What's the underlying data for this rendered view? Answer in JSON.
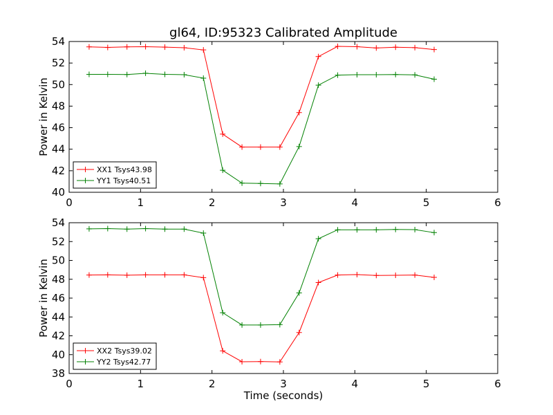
{
  "figure_title": "gl64, ID:95323 Calibrated Amplitude",
  "chart_data": [
    {
      "type": "line",
      "ylabel": "Power in Kelvin",
      "xlabel": "",
      "xlim": [
        0,
        6
      ],
      "ylim": [
        40,
        54
      ],
      "xticks": [
        0,
        1,
        2,
        3,
        4,
        5,
        6
      ],
      "yticks": [
        40,
        42,
        44,
        46,
        48,
        50,
        52,
        54
      ],
      "grid": false,
      "legend_position": "lower-left",
      "x": [
        0.28,
        0.54,
        0.81,
        1.07,
        1.34,
        1.61,
        1.88,
        2.15,
        2.42,
        2.68,
        2.95,
        3.22,
        3.49,
        3.76,
        4.03,
        4.3,
        4.57,
        4.84,
        5.11
      ],
      "series": [
        {
          "name": "XX1 Tsys43.98",
          "color": "#ff0000",
          "values": [
            53.5,
            53.45,
            53.5,
            53.52,
            53.48,
            53.42,
            53.22,
            45.4,
            44.2,
            44.2,
            44.2,
            47.4,
            52.6,
            53.55,
            53.52,
            53.4,
            53.47,
            53.43,
            53.25
          ]
        },
        {
          "name": "YY1 Tsys40.51",
          "color": "#008000",
          "values": [
            50.95,
            50.95,
            50.93,
            51.05,
            50.95,
            50.92,
            50.6,
            42.05,
            40.85,
            40.82,
            40.78,
            44.25,
            49.95,
            50.88,
            50.92,
            50.92,
            50.93,
            50.9,
            50.5
          ]
        }
      ]
    },
    {
      "type": "line",
      "ylabel": "Power in Kelvin",
      "xlabel": "Time (seconds)",
      "xlim": [
        0,
        6
      ],
      "ylim": [
        38,
        54
      ],
      "xticks": [
        0,
        1,
        2,
        3,
        4,
        5,
        6
      ],
      "yticks": [
        38,
        40,
        42,
        44,
        46,
        48,
        50,
        52,
        54
      ],
      "grid": false,
      "legend_position": "lower-left",
      "x": [
        0.28,
        0.54,
        0.81,
        1.07,
        1.34,
        1.61,
        1.88,
        2.15,
        2.42,
        2.68,
        2.95,
        3.22,
        3.49,
        3.76,
        4.03,
        4.3,
        4.57,
        4.84,
        5.11
      ],
      "series": [
        {
          "name": "XX2 Tsys39.02",
          "color": "#ff0000",
          "values": [
            48.45,
            48.47,
            48.43,
            48.47,
            48.47,
            48.47,
            48.17,
            40.4,
            39.25,
            39.27,
            39.23,
            42.35,
            47.65,
            48.45,
            48.5,
            48.4,
            48.42,
            48.45,
            48.2
          ]
        },
        {
          "name": "YY2 Tsys42.77",
          "color": "#008000",
          "values": [
            53.35,
            53.38,
            53.32,
            53.38,
            53.32,
            53.32,
            52.9,
            44.45,
            43.15,
            43.15,
            43.18,
            46.55,
            52.3,
            53.25,
            53.25,
            53.25,
            53.28,
            53.27,
            52.95
          ]
        }
      ]
    }
  ]
}
